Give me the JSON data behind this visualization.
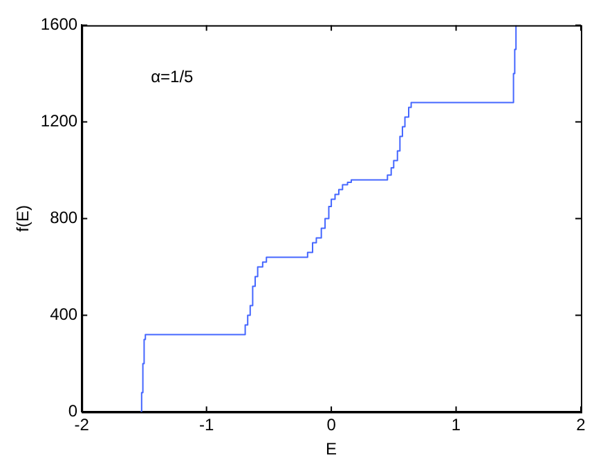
{
  "chart_data": {
    "type": "step",
    "xlabel": "E",
    "ylabel": "f(E)",
    "annotations": [
      "α=1/5"
    ],
    "x": [
      -1.53,
      -1.52,
      -1.51,
      -1.5,
      -1.49,
      -0.71,
      -0.69,
      -0.67,
      -0.65,
      -0.63,
      -0.61,
      -0.59,
      -0.55,
      -0.52,
      -0.23,
      -0.19,
      -0.15,
      -0.12,
      -0.08,
      -0.05,
      -0.02,
      0.0,
      0.03,
      0.06,
      0.09,
      0.13,
      0.16,
      0.42,
      0.45,
      0.48,
      0.5,
      0.53,
      0.55,
      0.57,
      0.59,
      0.62,
      0.64,
      1.45,
      1.46,
      1.47,
      1.48
    ],
    "series": [
      {
        "color": "#4466ff",
        "values": [
          0,
          80,
          200,
          300,
          320,
          320,
          360,
          400,
          440,
          520,
          560,
          600,
          620,
          640,
          640,
          660,
          700,
          720,
          760,
          800,
          850,
          880,
          900,
          920,
          940,
          950,
          960,
          960,
          980,
          1010,
          1040,
          1080,
          1140,
          1180,
          1220,
          1260,
          1280,
          1280,
          1400,
          1500,
          1600
        ]
      }
    ],
    "xlim": [
      -2,
      2
    ],
    "xticks": [
      -2,
      -1,
      0,
      1,
      2
    ],
    "ylim": [
      0,
      1600
    ],
    "yticks": [
      0,
      400,
      800,
      1200,
      1600
    ],
    "grid": false,
    "legend": false,
    "marker": "none",
    "line_style": "solid"
  }
}
